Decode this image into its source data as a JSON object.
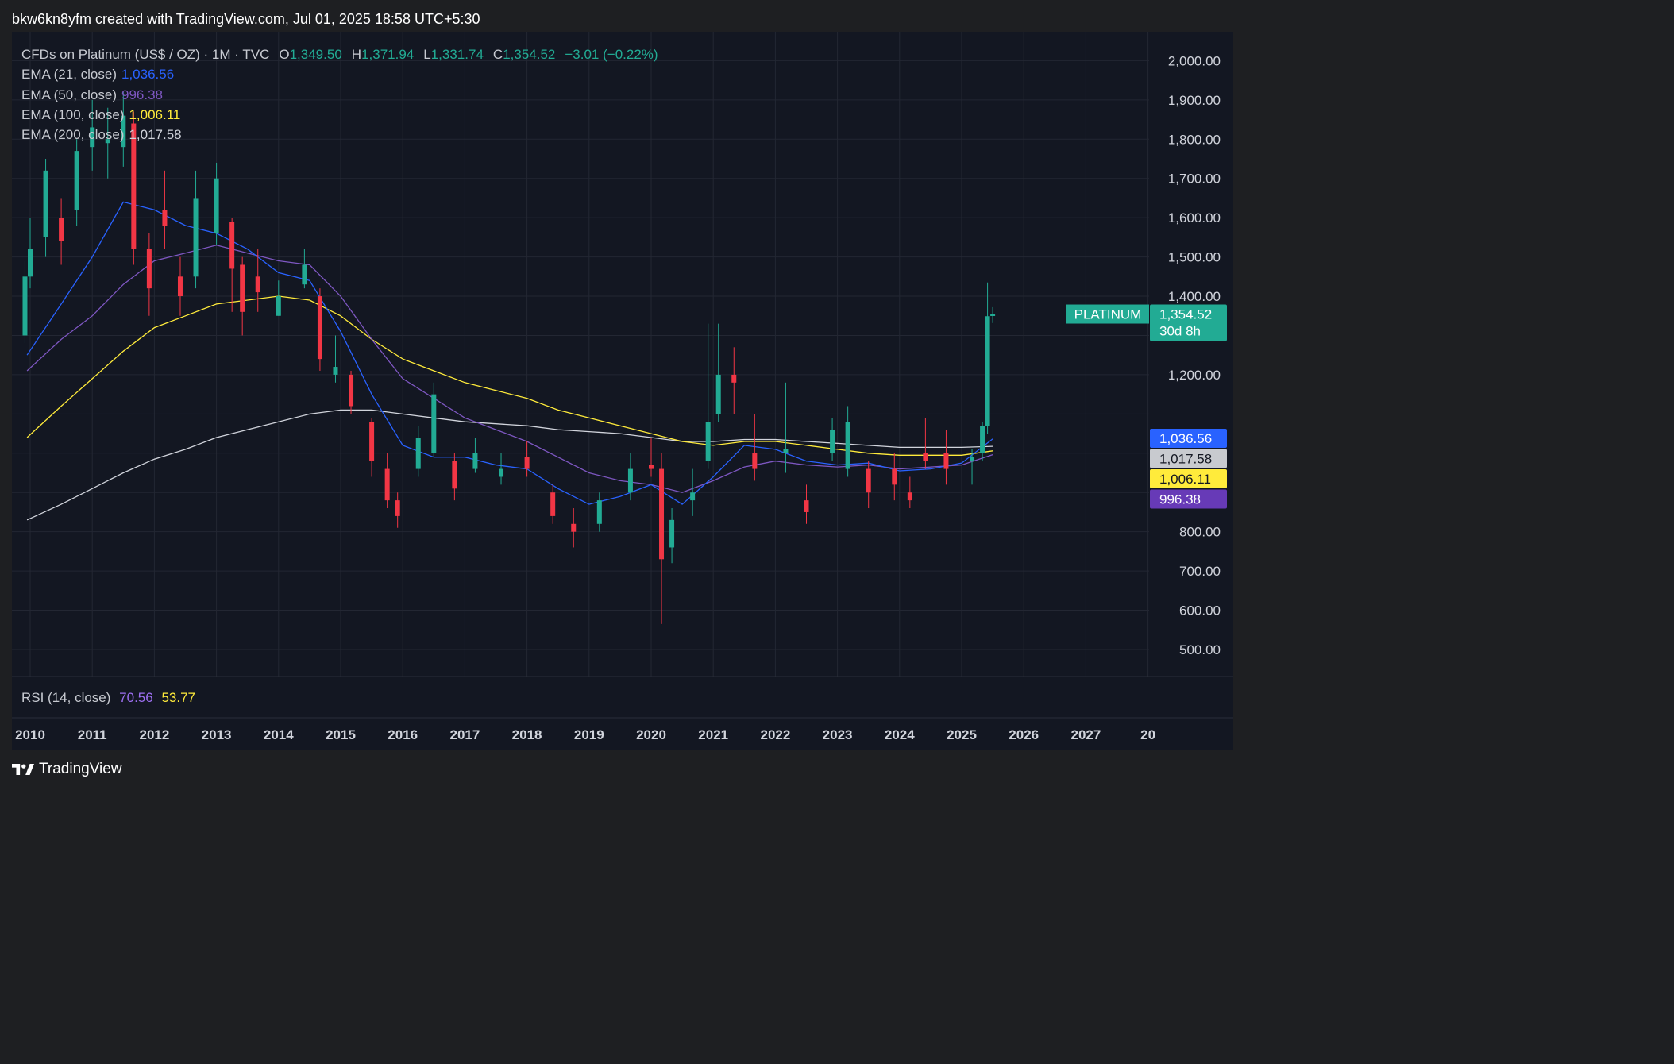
{
  "caption": "bkw6kn8yfm created with TradingView.com, Jul 01, 2025 18:58 UTC+5:30",
  "header": {
    "symbol": "CFDs on Platinum (US$ / OZ) · 1M · TVC",
    "o_label": "O",
    "o_value": "1,349.50",
    "h_label": "H",
    "h_value": "1,371.94",
    "l_label": "L",
    "l_value": "1,331.74",
    "c_label": "C",
    "c_value": "1,354.52",
    "change": "−3.01 (−0.22%)"
  },
  "indicators": [
    {
      "label": "EMA (21, close)",
      "value": "1,036.56",
      "color": "#2962ff"
    },
    {
      "label": "EMA (50, close)",
      "value": "996.38",
      "color": "#7e57c2"
    },
    {
      "label": "EMA (100, close)",
      "value": "1,006.11",
      "color": "#ffeb3b"
    },
    {
      "label": "EMA (200, close)",
      "value": "1,017.58",
      "color": "#d1d4dc"
    }
  ],
  "rsi": {
    "label": "RSI (14, close)",
    "value1": "70.56",
    "value1_color": "#9c6ff0",
    "value2": "53.77",
    "value2_color": "#ffeb3b"
  },
  "price_tag": {
    "label": "PLATINUM",
    "price": "1,354.52",
    "countdown": "30d 8h"
  },
  "footer": {
    "brand": "TradingView"
  },
  "colors": {
    "up": "#22ab94",
    "down": "#f23645",
    "background": "#131722",
    "grid": "#2a2e39"
  },
  "chart_data": {
    "type": "candlestick",
    "interval": "1M",
    "ylim": [
      420,
      2080
    ],
    "y_ticks": [
      500,
      600,
      700,
      800,
      1200,
      1400,
      1500,
      1600,
      1700,
      1800,
      1900,
      2000
    ],
    "y_tick_labels": [
      "500.00",
      "600.00",
      "700.00",
      "800.00",
      "1,200.00",
      "1,400.00",
      "1,500.00",
      "1,600.00",
      "1,700.00",
      "1,800.00",
      "1,900.00",
      "2,000.00"
    ],
    "x_ticks": [
      "2010",
      "2011",
      "2012",
      "2013",
      "2014",
      "2015",
      "2016",
      "2017",
      "2018",
      "2019",
      "2020",
      "2021",
      "2022",
      "2023",
      "2024",
      "2025",
      "2026",
      "2027",
      "20"
    ],
    "last_close": 1354.52,
    "last_close_date": "2025-07",
    "ema_last": {
      "ema21": 1036.56,
      "ema50": 996.38,
      "ema100": 1006.11,
      "ema200": 1017.58
    },
    "candles": [
      {
        "t": "2009-12",
        "o": 1300,
        "h": 1490,
        "c": 1450,
        "l": 1280
      },
      {
        "t": "2010-01",
        "o": 1450,
        "h": 1600,
        "c": 1520,
        "l": 1420
      },
      {
        "t": "2010-04",
        "o": 1550,
        "h": 1750,
        "c": 1720,
        "l": 1500
      },
      {
        "t": "2010-07",
        "o": 1600,
        "h": 1650,
        "c": 1540,
        "l": 1480
      },
      {
        "t": "2010-10",
        "o": 1620,
        "h": 1800,
        "c": 1770,
        "l": 1580
      },
      {
        "t": "2011-01",
        "o": 1780,
        "h": 1900,
        "c": 1830,
        "l": 1720
      },
      {
        "t": "2011-04",
        "o": 1790,
        "h": 1880,
        "c": 1800,
        "l": 1700
      },
      {
        "t": "2011-07",
        "o": 1780,
        "h": 1920,
        "c": 1860,
        "l": 1730
      },
      {
        "t": "2011-09",
        "o": 1840,
        "h": 1870,
        "c": 1520,
        "l": 1480
      },
      {
        "t": "2011-12",
        "o": 1520,
        "h": 1560,
        "c": 1420,
        "l": 1350
      },
      {
        "t": "2012-03",
        "o": 1620,
        "h": 1720,
        "c": 1580,
        "l": 1520
      },
      {
        "t": "2012-06",
        "o": 1450,
        "h": 1500,
        "c": 1400,
        "l": 1350
      },
      {
        "t": "2012-09",
        "o": 1450,
        "h": 1720,
        "c": 1650,
        "l": 1420
      },
      {
        "t": "2013-01",
        "o": 1560,
        "h": 1740,
        "c": 1700,
        "l": 1530
      },
      {
        "t": "2013-04",
        "o": 1590,
        "h": 1600,
        "c": 1470,
        "l": 1360
      },
      {
        "t": "2013-06",
        "o": 1480,
        "h": 1500,
        "c": 1360,
        "l": 1300
      },
      {
        "t": "2013-09",
        "o": 1450,
        "h": 1520,
        "c": 1410,
        "l": 1360
      },
      {
        "t": "2014-01",
        "o": 1350,
        "h": 1440,
        "c": 1400,
        "l": 1350
      },
      {
        "t": "2014-06",
        "o": 1430,
        "h": 1520,
        "c": 1480,
        "l": 1420
      },
      {
        "t": "2014-09",
        "o": 1400,
        "h": 1420,
        "c": 1240,
        "l": 1210
      },
      {
        "t": "2014-12",
        "o": 1200,
        "h": 1300,
        "c": 1220,
        "l": 1180
      },
      {
        "t": "2015-03",
        "o": 1200,
        "h": 1210,
        "c": 1120,
        "l": 1100
      },
      {
        "t": "2015-07",
        "o": 1080,
        "h": 1090,
        "c": 980,
        "l": 940
      },
      {
        "t": "2015-10",
        "o": 960,
        "h": 1000,
        "c": 880,
        "l": 860
      },
      {
        "t": "2015-12",
        "o": 880,
        "h": 900,
        "c": 840,
        "l": 810
      },
      {
        "t": "2016-04",
        "o": 960,
        "h": 1070,
        "c": 1040,
        "l": 940
      },
      {
        "t": "2016-07",
        "o": 1000,
        "h": 1180,
        "c": 1150,
        "l": 990
      },
      {
        "t": "2016-11",
        "o": 980,
        "h": 1000,
        "c": 910,
        "l": 880
      },
      {
        "t": "2017-03",
        "o": 960,
        "h": 1040,
        "c": 1000,
        "l": 950
      },
      {
        "t": "2017-08",
        "o": 940,
        "h": 1000,
        "c": 960,
        "l": 920
      },
      {
        "t": "2018-01",
        "o": 990,
        "h": 1030,
        "c": 960,
        "l": 940
      },
      {
        "t": "2018-06",
        "o": 900,
        "h": 920,
        "c": 840,
        "l": 820
      },
      {
        "t": "2018-10",
        "o": 820,
        "h": 860,
        "c": 800,
        "l": 760
      },
      {
        "t": "2019-03",
        "o": 820,
        "h": 900,
        "c": 880,
        "l": 800
      },
      {
        "t": "2019-09",
        "o": 900,
        "h": 1000,
        "c": 960,
        "l": 880
      },
      {
        "t": "2020-01",
        "o": 970,
        "h": 1040,
        "c": 960,
        "l": 940
      },
      {
        "t": "2020-03",
        "o": 960,
        "h": 1000,
        "c": 730,
        "l": 565
      },
      {
        "t": "2020-05",
        "o": 760,
        "h": 860,
        "c": 830,
        "l": 720
      },
      {
        "t": "2020-09",
        "o": 880,
        "h": 960,
        "c": 900,
        "l": 840
      },
      {
        "t": "2020-12",
        "o": 980,
        "h": 1330,
        "c": 1080,
        "l": 960
      },
      {
        "t": "2021-02",
        "o": 1100,
        "h": 1330,
        "c": 1200,
        "l": 1080
      },
      {
        "t": "2021-05",
        "o": 1200,
        "h": 1270,
        "c": 1180,
        "l": 1100
      },
      {
        "t": "2021-09",
        "o": 1000,
        "h": 1100,
        "c": 960,
        "l": 930
      },
      {
        "t": "2022-03",
        "o": 1000,
        "h": 1180,
        "c": 1010,
        "l": 950
      },
      {
        "t": "2022-07",
        "o": 880,
        "h": 920,
        "c": 850,
        "l": 820
      },
      {
        "t": "2022-12",
        "o": 1000,
        "h": 1090,
        "c": 1060,
        "l": 980
      },
      {
        "t": "2023-03",
        "o": 960,
        "h": 1120,
        "c": 1080,
        "l": 940
      },
      {
        "t": "2023-07",
        "o": 960,
        "h": 980,
        "c": 900,
        "l": 860
      },
      {
        "t": "2023-12",
        "o": 960,
        "h": 1000,
        "c": 920,
        "l": 880
      },
      {
        "t": "2024-03",
        "o": 900,
        "h": 940,
        "c": 880,
        "l": 860
      },
      {
        "t": "2024-06",
        "o": 1000,
        "h": 1090,
        "c": 980,
        "l": 960
      },
      {
        "t": "2024-10",
        "o": 1000,
        "h": 1060,
        "c": 960,
        "l": 920
      },
      {
        "t": "2025-03",
        "o": 980,
        "h": 1010,
        "c": 990,
        "l": 920
      },
      {
        "t": "2025-05",
        "o": 1000,
        "h": 1080,
        "c": 1070,
        "l": 980
      },
      {
        "t": "2025-06",
        "o": 1070,
        "h": 1435,
        "c": 1349,
        "l": 1050
      },
      {
        "t": "2025-07",
        "o": 1349.5,
        "h": 1371.94,
        "c": 1354.52,
        "l": 1331.74
      }
    ],
    "ema_series": {
      "ema21": [
        [
          2009.95,
          1250
        ],
        [
          2010.5,
          1380
        ],
        [
          2011.0,
          1500
        ],
        [
          2011.5,
          1640
        ],
        [
          2012.0,
          1620
        ],
        [
          2012.5,
          1580
        ],
        [
          2013.0,
          1560
        ],
        [
          2013.5,
          1520
        ],
        [
          2014.0,
          1460
        ],
        [
          2014.5,
          1440
        ],
        [
          2015.0,
          1310
        ],
        [
          2015.5,
          1150
        ],
        [
          2016.0,
          1020
        ],
        [
          2016.5,
          990
        ],
        [
          2017.0,
          990
        ],
        [
          2017.5,
          970
        ],
        [
          2018.0,
          960
        ],
        [
          2018.5,
          910
        ],
        [
          2019.0,
          870
        ],
        [
          2019.5,
          890
        ],
        [
          2020.0,
          920
        ],
        [
          2020.5,
          870
        ],
        [
          2021.0,
          940
        ],
        [
          2021.5,
          1020
        ],
        [
          2022.0,
          1010
        ],
        [
          2022.5,
          980
        ],
        [
          2023.0,
          970
        ],
        [
          2023.5,
          975
        ],
        [
          2024.0,
          955
        ],
        [
          2024.5,
          960
        ],
        [
          2025.0,
          975
        ],
        [
          2025.5,
          1036.56
        ]
      ],
      "ema50": [
        [
          2009.95,
          1210
        ],
        [
          2010.5,
          1290
        ],
        [
          2011.0,
          1350
        ],
        [
          2011.5,
          1430
        ],
        [
          2012.0,
          1490
        ],
        [
          2012.5,
          1510
        ],
        [
          2013.0,
          1530
        ],
        [
          2013.5,
          1510
        ],
        [
          2014.0,
          1490
        ],
        [
          2014.5,
          1480
        ],
        [
          2015.0,
          1400
        ],
        [
          2015.5,
          1290
        ],
        [
          2016.0,
          1190
        ],
        [
          2016.5,
          1140
        ],
        [
          2017.0,
          1090
        ],
        [
          2017.5,
          1060
        ],
        [
          2018.0,
          1030
        ],
        [
          2018.5,
          990
        ],
        [
          2019.0,
          950
        ],
        [
          2019.5,
          930
        ],
        [
          2020.0,
          920
        ],
        [
          2020.5,
          900
        ],
        [
          2021.0,
          930
        ],
        [
          2021.5,
          965
        ],
        [
          2022.0,
          980
        ],
        [
          2022.5,
          970
        ],
        [
          2023.0,
          965
        ],
        [
          2023.5,
          970
        ],
        [
          2024.0,
          960
        ],
        [
          2024.5,
          965
        ],
        [
          2025.0,
          970
        ],
        [
          2025.5,
          996.38
        ]
      ],
      "ema100": [
        [
          2009.95,
          1040
        ],
        [
          2010.5,
          1120
        ],
        [
          2011.0,
          1190
        ],
        [
          2011.5,
          1260
        ],
        [
          2012.0,
          1320
        ],
        [
          2012.5,
          1350
        ],
        [
          2013.0,
          1380
        ],
        [
          2013.5,
          1390
        ],
        [
          2014.0,
          1400
        ],
        [
          2014.5,
          1390
        ],
        [
          2015.0,
          1350
        ],
        [
          2015.5,
          1290
        ],
        [
          2016.0,
          1240
        ],
        [
          2016.5,
          1210
        ],
        [
          2017.0,
          1180
        ],
        [
          2017.5,
          1160
        ],
        [
          2018.0,
          1140
        ],
        [
          2018.5,
          1110
        ],
        [
          2019.0,
          1090
        ],
        [
          2019.5,
          1070
        ],
        [
          2020.0,
          1050
        ],
        [
          2020.5,
          1030
        ],
        [
          2021.0,
          1020
        ],
        [
          2021.5,
          1030
        ],
        [
          2022.0,
          1030
        ],
        [
          2022.5,
          1020
        ],
        [
          2023.0,
          1010
        ],
        [
          2023.5,
          1000
        ],
        [
          2024.0,
          995
        ],
        [
          2024.5,
          995
        ],
        [
          2025.0,
          995
        ],
        [
          2025.5,
          1006.11
        ]
      ],
      "ema200": [
        [
          2009.95,
          830
        ],
        [
          2010.5,
          870
        ],
        [
          2011.0,
          910
        ],
        [
          2011.5,
          950
        ],
        [
          2012.0,
          985
        ],
        [
          2012.5,
          1010
        ],
        [
          2013.0,
          1040
        ],
        [
          2013.5,
          1060
        ],
        [
          2014.0,
          1080
        ],
        [
          2014.5,
          1100
        ],
        [
          2015.0,
          1110
        ],
        [
          2015.5,
          1110
        ],
        [
          2016.0,
          1100
        ],
        [
          2016.5,
          1090
        ],
        [
          2017.0,
          1080
        ],
        [
          2017.5,
          1075
        ],
        [
          2018.0,
          1070
        ],
        [
          2018.5,
          1060
        ],
        [
          2019.0,
          1055
        ],
        [
          2019.5,
          1050
        ],
        [
          2020.0,
          1040
        ],
        [
          2020.5,
          1030
        ],
        [
          2021.0,
          1030
        ],
        [
          2021.5,
          1035
        ],
        [
          2022.0,
          1035
        ],
        [
          2022.5,
          1030
        ],
        [
          2023.0,
          1025
        ],
        [
          2023.5,
          1020
        ],
        [
          2024.0,
          1015
        ],
        [
          2024.5,
          1015
        ],
        [
          2025.0,
          1015
        ],
        [
          2025.5,
          1017.58
        ]
      ]
    }
  }
}
